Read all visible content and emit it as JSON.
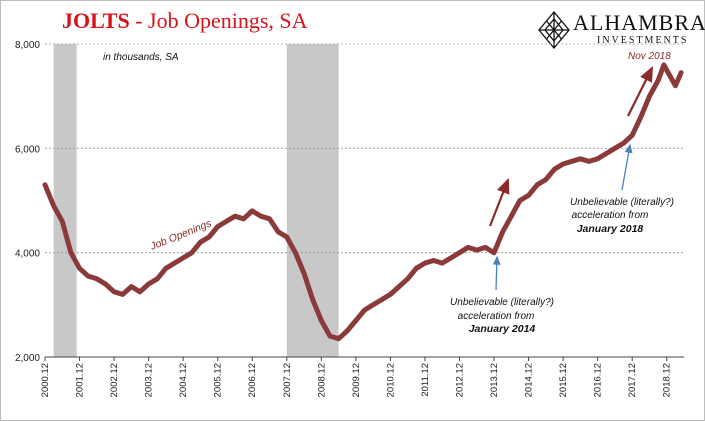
{
  "title": {
    "main": "JOLTS",
    "rest": " - Job Openings, SA"
  },
  "logo": {
    "name": "ALHAMBRA",
    "sub": "INVESTMENTS",
    "icon": "diamond-lattice-icon"
  },
  "colors": {
    "series": "#8b3a3a",
    "recession": "#c8c8c8",
    "title": "#d9111a",
    "annotation_arrow": "#4a7fc1",
    "trend_arrow": "#8b2a2a"
  },
  "chart_data": {
    "type": "line",
    "title": "JOLTS - Job Openings, SA",
    "unit_note": "in thousands, SA",
    "ylim": [
      2000,
      8000
    ],
    "yticks": [
      2000,
      4000,
      6000,
      8000
    ],
    "ytick_labels": [
      "2,000",
      "4,000",
      "6,000",
      "8,000"
    ],
    "xlim": [
      "2000-12",
      "2019-06"
    ],
    "xtick_labels": [
      "2000.12",
      "2001.12",
      "2002.12",
      "2003.12",
      "2004.12",
      "2005.12",
      "2006.12",
      "2007.12",
      "2008.12",
      "2009.12",
      "2010.12",
      "2011.12",
      "2012.12",
      "2013.12",
      "2014.12",
      "2015.12",
      "2016.12",
      "2017.12",
      "2018.12"
    ],
    "grid": "horizontal dashed",
    "recessions": [
      [
        "2001-03",
        "2001-11"
      ],
      [
        "2007-12",
        "2009-06"
      ]
    ],
    "series": [
      {
        "name": "Job Openings",
        "x": [
          "2000-12",
          "2001-03",
          "2001-06",
          "2001-09",
          "2001-12",
          "2002-03",
          "2002-06",
          "2002-09",
          "2002-12",
          "2003-03",
          "2003-06",
          "2003-09",
          "2003-12",
          "2004-03",
          "2004-06",
          "2004-09",
          "2004-12",
          "2005-03",
          "2005-06",
          "2005-09",
          "2005-12",
          "2006-03",
          "2006-06",
          "2006-09",
          "2006-12",
          "2007-03",
          "2007-06",
          "2007-09",
          "2007-12",
          "2008-03",
          "2008-06",
          "2008-09",
          "2008-12",
          "2009-03",
          "2009-06",
          "2009-09",
          "2009-12",
          "2010-03",
          "2010-06",
          "2010-09",
          "2010-12",
          "2011-03",
          "2011-06",
          "2011-09",
          "2011-12",
          "2012-03",
          "2012-06",
          "2012-09",
          "2012-12",
          "2013-03",
          "2013-06",
          "2013-09",
          "2013-12",
          "2014-03",
          "2014-06",
          "2014-09",
          "2014-12",
          "2015-03",
          "2015-06",
          "2015-09",
          "2015-12",
          "2016-03",
          "2016-06",
          "2016-09",
          "2016-12",
          "2017-03",
          "2017-06",
          "2017-09",
          "2017-12",
          "2018-03",
          "2018-06",
          "2018-09",
          "2018-11",
          "2019-01",
          "2019-03",
          "2019-05"
        ],
        "values": [
          5300,
          4900,
          4600,
          4000,
          3700,
          3550,
          3500,
          3400,
          3250,
          3200,
          3350,
          3250,
          3400,
          3500,
          3700,
          3800,
          3900,
          4000,
          4200,
          4300,
          4500,
          4600,
          4700,
          4650,
          4800,
          4700,
          4650,
          4400,
          4300,
          4000,
          3600,
          3100,
          2700,
          2400,
          2350,
          2500,
          2700,
          2900,
          3000,
          3100,
          3200,
          3350,
          3500,
          3700,
          3800,
          3850,
          3800,
          3900,
          4000,
          4100,
          4050,
          4100,
          4000,
          4400,
          4700,
          5000,
          5100,
          5300,
          5400,
          5600,
          5700,
          5750,
          5800,
          5750,
          5800,
          5900,
          6000,
          6100,
          6250,
          6600,
          7000,
          7300,
          7600,
          7400,
          7200,
          7450
        ]
      }
    ],
    "annotations": {
      "series_label": "Job Openings",
      "nov2018": "Nov 2018",
      "jan2018": {
        "lines": [
          "Unbelievable (literally?)",
          "acceleration from"
        ],
        "emph": "January 2018"
      },
      "jan2014": {
        "lines": [
          "Unbelievable (literally?)",
          "acceleration from"
        ],
        "emph": "January 2014"
      }
    }
  }
}
